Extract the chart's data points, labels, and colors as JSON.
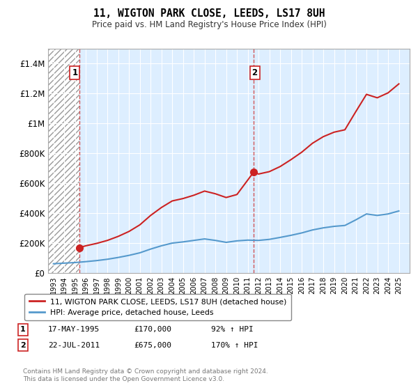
{
  "title": "11, WIGTON PARK CLOSE, LEEDS, LS17 8UH",
  "subtitle": "Price paid vs. HM Land Registry's House Price Index (HPI)",
  "ylim": [
    0,
    1500000
  ],
  "yticks": [
    0,
    200000,
    400000,
    600000,
    800000,
    1000000,
    1200000,
    1400000
  ],
  "ytick_labels": [
    "£0",
    "£200K",
    "£400K",
    "£600K",
    "£800K",
    "£1M",
    "£1.2M",
    "£1.4M"
  ],
  "hpi_color": "#5599cc",
  "price_color": "#cc2222",
  "bg_color": "#ddeeff",
  "ann1_x": 1995.38,
  "ann1_y": 170000,
  "ann2_x": 2011.55,
  "ann2_y": 675000,
  "legend_line1": "11, WIGTON PARK CLOSE, LEEDS, LS17 8UH (detached house)",
  "legend_line2": "HPI: Average price, detached house, Leeds",
  "copyright": "Contains HM Land Registry data © Crown copyright and database right 2024.\nThis data is licensed under the Open Government Licence v3.0.",
  "xlim": [
    1992.5,
    2026.0
  ],
  "xticks": [
    1993,
    1994,
    1995,
    1996,
    1997,
    1998,
    1999,
    2000,
    2001,
    2002,
    2003,
    2004,
    2005,
    2006,
    2007,
    2008,
    2009,
    2010,
    2011,
    2012,
    2013,
    2014,
    2015,
    2016,
    2017,
    2018,
    2019,
    2020,
    2021,
    2022,
    2023,
    2024,
    2025
  ],
  "hpi_years": [
    1993,
    1994,
    1995,
    1996,
    1997,
    1998,
    1999,
    2000,
    2001,
    2002,
    2003,
    2004,
    2005,
    2006,
    2007,
    2008,
    2009,
    2010,
    2011,
    2012,
    2013,
    2014,
    2015,
    2016,
    2017,
    2018,
    2019,
    2020,
    2021,
    2022,
    2023,
    2024,
    2025
  ],
  "hpi_values": [
    62000,
    66000,
    70000,
    76000,
    83000,
    92000,
    104000,
    118000,
    135000,
    160000,
    182000,
    200000,
    208000,
    218000,
    228000,
    218000,
    205000,
    215000,
    220000,
    218000,
    225000,
    238000,
    252000,
    268000,
    288000,
    302000,
    312000,
    318000,
    355000,
    395000,
    385000,
    395000,
    415000
  ],
  "price_years": [
    1995.38,
    1996,
    1997,
    1998,
    1999,
    2000,
    2001,
    2002,
    2003,
    2004,
    2005,
    2006,
    2007,
    2008,
    2009,
    2010,
    2011.55,
    2012,
    2013,
    2014,
    2015,
    2016,
    2017,
    2018,
    2019,
    2020,
    2021,
    2022,
    2023,
    2024,
    2025
  ],
  "price_values": [
    170000,
    182000,
    198000,
    218000,
    245000,
    278000,
    322000,
    385000,
    438000,
    482000,
    498000,
    520000,
    548000,
    530000,
    505000,
    525000,
    675000,
    662000,
    678000,
    712000,
    758000,
    808000,
    868000,
    912000,
    942000,
    958000,
    1078000,
    1195000,
    1172000,
    1205000,
    1265000
  ]
}
